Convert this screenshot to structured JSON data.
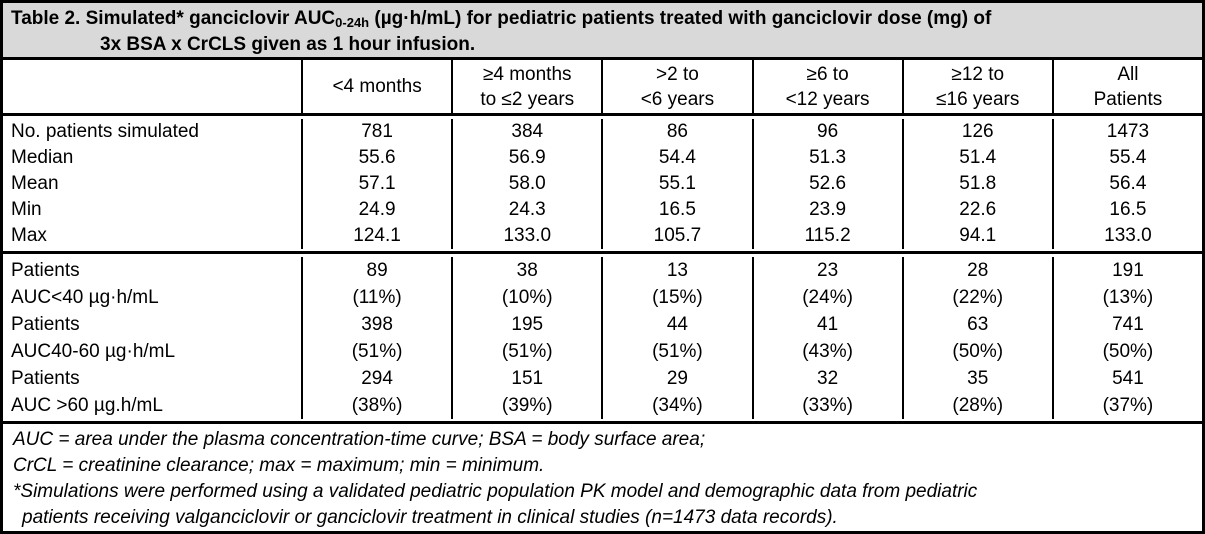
{
  "colors": {
    "title_bg": "#d9d9d9",
    "border": "#000000",
    "background": "#ffffff"
  },
  "title": {
    "line1_pre": "Table 2. Simulated* ganciclovir AUC",
    "line1_sub": "0-24h",
    "line1_post": " (µg·h/mL) for pediatric patients treated with ganciclovir dose (mg) of",
    "line2": "3x BSA x CrCLS given as 1 hour infusion."
  },
  "headers": [
    {
      "l1": "",
      "l2": ""
    },
    {
      "l1": "<4 months",
      "l2": ""
    },
    {
      "l1": "≥4 months",
      "l2": "to ≤2 years"
    },
    {
      "l1": ">2 to",
      "l2": "<6 years"
    },
    {
      "l1": "≥6 to",
      "l2": "<12 years"
    },
    {
      "l1": "≥12 to",
      "l2": "≤16 years"
    },
    {
      "l1": "All",
      "l2": "Patients"
    }
  ],
  "stats_rows": [
    {
      "label": "No. patients simulated",
      "values": [
        "781",
        "384",
        "86",
        "96",
        "126",
        "1473"
      ]
    },
    {
      "label": "Median",
      "values": [
        "55.6",
        "56.9",
        "54.4",
        "51.3",
        "51.4",
        "55.4"
      ]
    },
    {
      "label": "Mean",
      "values": [
        "57.1",
        "58.0",
        "55.1",
        "52.6",
        "51.8",
        "56.4"
      ]
    },
    {
      "label": "Min",
      "values": [
        "24.9",
        "24.3",
        "16.5",
        "23.9",
        "22.6",
        "16.5"
      ]
    },
    {
      "label": "Max",
      "values": [
        "124.1",
        "133.0",
        "105.7",
        "115.2",
        "94.1",
        "133.0"
      ]
    }
  ],
  "dist_rows": [
    {
      "label": "Patients",
      "values": [
        "89",
        "38",
        "13",
        "23",
        "28",
        "191"
      ]
    },
    {
      "label": "AUC<40 µg·h/mL",
      "values": [
        "(11%)",
        "(10%)",
        "(15%)",
        "(24%)",
        "(22%)",
        "(13%)"
      ]
    },
    {
      "label": "Patients",
      "values": [
        "398",
        "195",
        "44",
        "41",
        "63",
        "741"
      ]
    },
    {
      "label": "AUC40-60 µg·h/mL",
      "values": [
        "(51%)",
        "(51%)",
        "(51%)",
        "(43%)",
        "(50%)",
        "(50%)"
      ]
    },
    {
      "label": "Patients",
      "values": [
        "294",
        "151",
        "29",
        "32",
        "35",
        "541"
      ]
    },
    {
      "label": "AUC >60 µg.h/mL",
      "values": [
        "(38%)",
        "(39%)",
        "(34%)",
        "(33%)",
        "(28%)",
        "(37%)"
      ]
    }
  ],
  "footnotes": [
    "AUC = area under the plasma concentration-time curve; BSA = body surface area;",
    "CrCL = creatinine clearance; max = maximum; min = minimum.",
    "*Simulations were performed using a validated pediatric population PK model and demographic data from pediatric",
    "patients receiving valganciclovir or ganciclovir treatment in clinical studies (n=1473 data records)."
  ]
}
